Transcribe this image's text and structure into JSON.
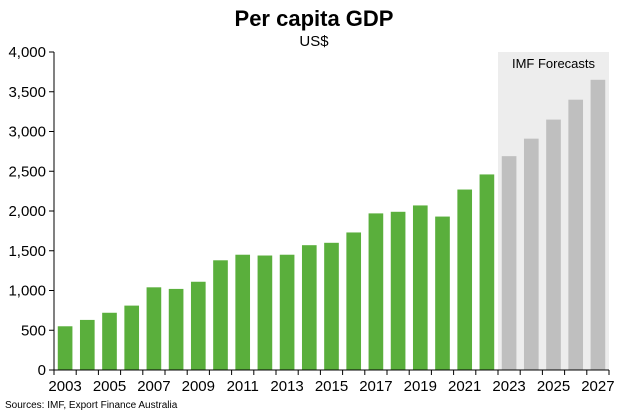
{
  "chart_data": {
    "type": "bar",
    "title": "Per capita GDP",
    "subtitle": "US$",
    "source": "Sources: IMF, Export Finance Australia",
    "forecast_label": "IMF Forecasts",
    "ylim": [
      0,
      4000
    ],
    "yticks": [
      "0",
      "500",
      "1,000",
      "1,500",
      "2,000",
      "2,500",
      "3,000",
      "3,500",
      "4,000"
    ],
    "ytick_values": [
      0,
      500,
      1000,
      1500,
      2000,
      2500,
      3000,
      3500,
      4000
    ],
    "xtick_labels": [
      "2003",
      "2005",
      "2007",
      "2009",
      "2011",
      "2013",
      "2015",
      "2017",
      "2019",
      "2021",
      "2023",
      "2025",
      "2027"
    ],
    "categories": [
      "2003",
      "2004",
      "2005",
      "2006",
      "2007",
      "2008",
      "2009",
      "2010",
      "2011",
      "2012",
      "2013",
      "2014",
      "2015",
      "2016",
      "2017",
      "2018",
      "2019",
      "2020",
      "2021",
      "2022",
      "2023",
      "2024",
      "2025",
      "2026",
      "2027"
    ],
    "series": [
      {
        "values": [
          550,
          630,
          720,
          810,
          1040,
          1020,
          1110,
          1380,
          1450,
          1440,
          1450,
          1570,
          1600,
          1730,
          1970,
          1990,
          2070,
          1930,
          2270,
          2460,
          null,
          null,
          null,
          null,
          null
        ],
        "color": "#5aaf3c"
      },
      {
        "values": [
          null,
          null,
          null,
          null,
          null,
          null,
          null,
          null,
          null,
          null,
          null,
          null,
          null,
          null,
          null,
          null,
          null,
          null,
          null,
          null,
          2690,
          2910,
          3150,
          3400,
          3650
        ],
        "color": "#bfbfbf"
      }
    ],
    "forecast_shade_color": "#ededed",
    "grid": false,
    "legend": "none"
  }
}
